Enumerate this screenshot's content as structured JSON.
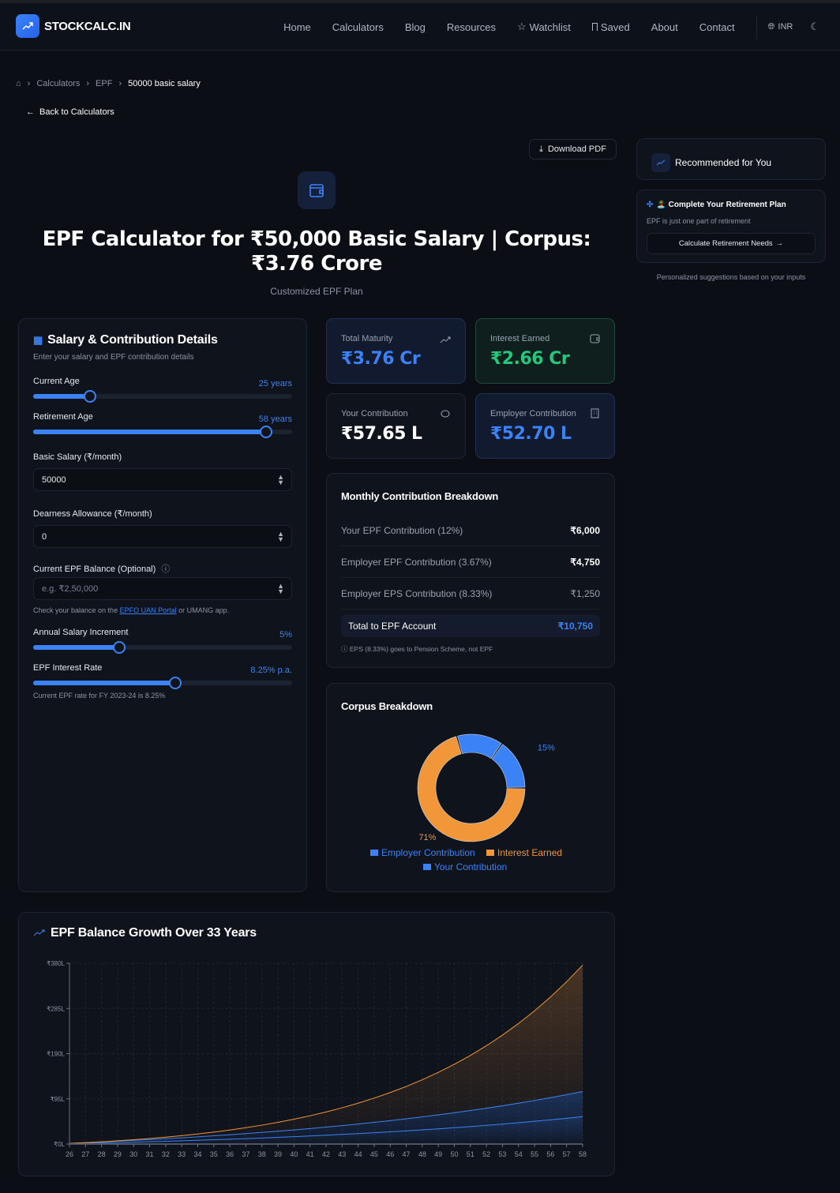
{
  "header": {
    "brand": "STOCKCALC.IN",
    "nav": [
      "Home",
      "Calculators",
      "Blog",
      "Resources",
      "Watchlist",
      "Saved",
      "About",
      "Contact"
    ],
    "currency": "INR"
  },
  "breadcrumb": [
    "Calculators",
    "EPF",
    "50000 basic salary"
  ],
  "back_label": "Back to Calculators",
  "download_label": "Download PDF",
  "title": "EPF Calculator for ₹50,000 Basic Salary | Corpus: ₹3.76 Crore",
  "subtitle": "Customized EPF Plan",
  "form": {
    "title": "Salary & Contribution Details",
    "subtitle": "Enter your salary and EPF contribution details",
    "current_age": {
      "label": "Current Age",
      "display": "25 years",
      "value": 25,
      "min": 18,
      "max": 50
    },
    "retirement_age": {
      "label": "Retirement Age",
      "display": "58 years",
      "value": 58,
      "min": 40,
      "max": 60
    },
    "basic_salary": {
      "label": "Basic Salary (₹/month)",
      "value": "50000"
    },
    "da": {
      "label": "Dearness Allowance (₹/month)",
      "value": "0"
    },
    "balance": {
      "label": "Current EPF Balance (Optional)",
      "placeholder": "e.g. ₹2,50,000",
      "hint_pre": "Check your balance on the ",
      "hint_link": "EPFO UAN Portal",
      "hint_post": " or UMANG app."
    },
    "increment": {
      "label": "Annual Salary Increment",
      "display": "5%",
      "value": 5,
      "min": 0,
      "max": 15
    },
    "interest": {
      "label": "EPF Interest Rate",
      "display": "8.25% p.a.",
      "value": 8.25,
      "min": 0,
      "max": 15,
      "hint": "Current EPF rate for FY 2023-24 is 8.25%"
    }
  },
  "stats": [
    {
      "label": "Total Maturity",
      "value": "₹3.76 Cr",
      "color": "#3b82f6"
    },
    {
      "label": "Interest Earned",
      "value": "₹2.66 Cr",
      "color": "#22c97a"
    },
    {
      "label": "Your Contribution",
      "value": "₹57.65 L",
      "color": "#ffffff"
    },
    {
      "label": "Employer Contribution",
      "value": "₹52.70 L",
      "color": "#3b82f6"
    }
  ],
  "breakdown": {
    "title": "Monthly Contribution Breakdown",
    "rows": [
      {
        "label": "Your EPF Contribution (12%)",
        "value": "₹6,000"
      },
      {
        "label": "Employer EPF Contribution (3.67%)",
        "value": "₹4,750"
      },
      {
        "label": "Employer EPS Contribution (8.33%)",
        "value": "₹1,250"
      }
    ],
    "total_label": "Total to EPF Account",
    "total_value": "₹10,750",
    "note": "EPS (8.33%) goes to Pension Scheme, not EPF"
  },
  "sidebar": {
    "recommended": "Recommended for You",
    "plan_title": "🏝️ Complete Your Retirement Plan",
    "plan_sub": "EPF is just one part of retirement",
    "plan_button": "Calculate Retirement Needs",
    "footer": "Personalized suggestions based on your inputs"
  },
  "chart_data": [
    {
      "type": "pie",
      "title": "Corpus Breakdown",
      "donut": true,
      "categories": [
        "Your Contribution",
        "Employer Contribution",
        "Interest Earned"
      ],
      "values": [
        57.65,
        52.7,
        265.59
      ],
      "labels": [
        "15%",
        "",
        "71%"
      ],
      "colors": [
        "#3b82f6",
        "#3b82f6",
        "#f2963a"
      ],
      "legend": [
        "Employer Contribution",
        "Interest Earned",
        "Your Contribution"
      ],
      "legend_placement": "bottom"
    },
    {
      "type": "area",
      "title": "EPF Balance Growth Over 33 Years",
      "stacked": true,
      "grid": true,
      "x": [
        26,
        27,
        28,
        29,
        30,
        31,
        32,
        33,
        34,
        35,
        36,
        37,
        38,
        39,
        40,
        41,
        42,
        43,
        44,
        45,
        46,
        47,
        48,
        49,
        50,
        51,
        52,
        53,
        54,
        55,
        56,
        57,
        58
      ],
      "ylim": [
        0,
        380
      ],
      "yticks": [
        "₹0L",
        "₹95L",
        "₹190L",
        "₹285L",
        "₹380L"
      ],
      "ytick_values": [
        0,
        95,
        190,
        285,
        380
      ],
      "series": [
        {
          "key": "your",
          "color": "#3b82f6",
          "values": [
            0.72,
            1.48,
            2.27,
            3.1,
            3.98,
            4.9,
            5.86,
            6.88,
            7.94,
            9.06,
            10.23,
            11.46,
            12.75,
            14.11,
            15.54,
            17.03,
            18.6,
            20.26,
            21.99,
            23.81,
            25.72,
            27.72,
            29.83,
            32.04,
            34.36,
            36.8,
            39.36,
            42.05,
            44.87,
            47.84,
            50.95,
            54.21,
            57.65
          ]
        },
        {
          "key": "employer",
          "color": "#3b82f6",
          "values": [
            0.66,
            1.35,
            2.07,
            2.83,
            3.64,
            4.48,
            5.36,
            6.29,
            7.26,
            8.28,
            9.35,
            10.48,
            11.65,
            12.9,
            14.2,
            15.57,
            17.0,
            18.52,
            20.1,
            21.76,
            23.51,
            25.34,
            27.27,
            29.29,
            31.41,
            33.64,
            35.98,
            38.44,
            41.02,
            43.73,
            46.57,
            49.55,
            52.7
          ]
        },
        {
          "key": "interest",
          "color": "#f2963a",
          "values": [
            0.03,
            0.17,
            0.46,
            0.9,
            1.48,
            2.27,
            3.28,
            4.5,
            6.01,
            7.81,
            9.94,
            12.42,
            15.32,
            18.64,
            22.47,
            26.84,
            31.82,
            37.43,
            43.8,
            50.96,
            59.0,
            68.02,
            78.09,
            89.34,
            101.87,
            115.8,
            131.27,
            148.42,
            167.43,
            188.44,
            211.68,
            237.33,
            265.59
          ]
        }
      ]
    }
  ]
}
